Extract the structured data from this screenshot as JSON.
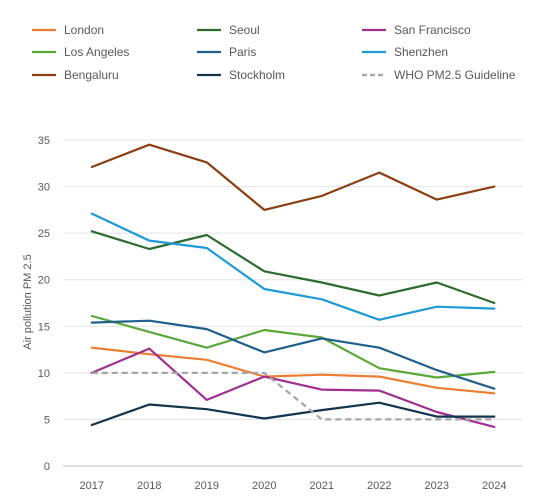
{
  "chart_data": {
    "type": "line",
    "title": "",
    "xlabel": "",
    "ylabel": "Air pollution PM 2.5",
    "categories": [
      "2017",
      "2018",
      "2019",
      "2020",
      "2021",
      "2022",
      "2023",
      "2024"
    ],
    "ylim": [
      0,
      35
    ],
    "yticks": [
      0,
      5,
      10,
      15,
      20,
      25,
      30,
      35
    ],
    "grid": "horizontal",
    "legend_position": "top",
    "series": [
      {
        "name": "London",
        "color": "#ED7D31",
        "dashed": false,
        "values": [
          12.7,
          12.0,
          11.4,
          9.6,
          9.8,
          9.6,
          8.4,
          7.8
        ]
      },
      {
        "name": "Seoul",
        "color": "#2E6B2E",
        "dashed": false,
        "values": [
          25.2,
          23.3,
          24.8,
          20.9,
          19.7,
          18.3,
          19.7,
          17.5
        ]
      },
      {
        "name": "San Francisco",
        "color": "#A0308F",
        "dashed": false,
        "values": [
          10.0,
          12.6,
          7.1,
          9.6,
          8.2,
          8.1,
          5.8,
          4.2
        ]
      },
      {
        "name": "Los Angeles",
        "color": "#5BA83A",
        "dashed": false,
        "values": [
          16.1,
          14.4,
          12.7,
          14.6,
          13.8,
          10.5,
          9.5,
          10.1
        ]
      },
      {
        "name": "Paris",
        "color": "#1F5F8B",
        "dashed": false,
        "values": [
          15.4,
          15.6,
          14.7,
          12.2,
          13.7,
          12.7,
          10.3,
          8.3
        ]
      },
      {
        "name": "Shenzhen",
        "color": "#1E9AD6",
        "dashed": false,
        "values": [
          27.1,
          24.2,
          23.4,
          19.0,
          17.9,
          15.7,
          17.1,
          16.9
        ]
      },
      {
        "name": "Bengaluru",
        "color": "#8B3F13",
        "dashed": false,
        "values": [
          32.1,
          34.5,
          32.6,
          27.5,
          29.0,
          31.5,
          28.6,
          30.0
        ]
      },
      {
        "name": "Stockholm",
        "color": "#12344D",
        "dashed": false,
        "values": [
          4.4,
          6.6,
          6.1,
          5.1,
          6.0,
          6.8,
          5.3,
          5.3
        ]
      },
      {
        "name": "WHO PM2.5 Guideline",
        "color": "#A6A6A6",
        "dashed": true,
        "values": [
          10,
          10,
          10,
          10,
          5,
          5,
          5,
          5
        ]
      }
    ]
  }
}
